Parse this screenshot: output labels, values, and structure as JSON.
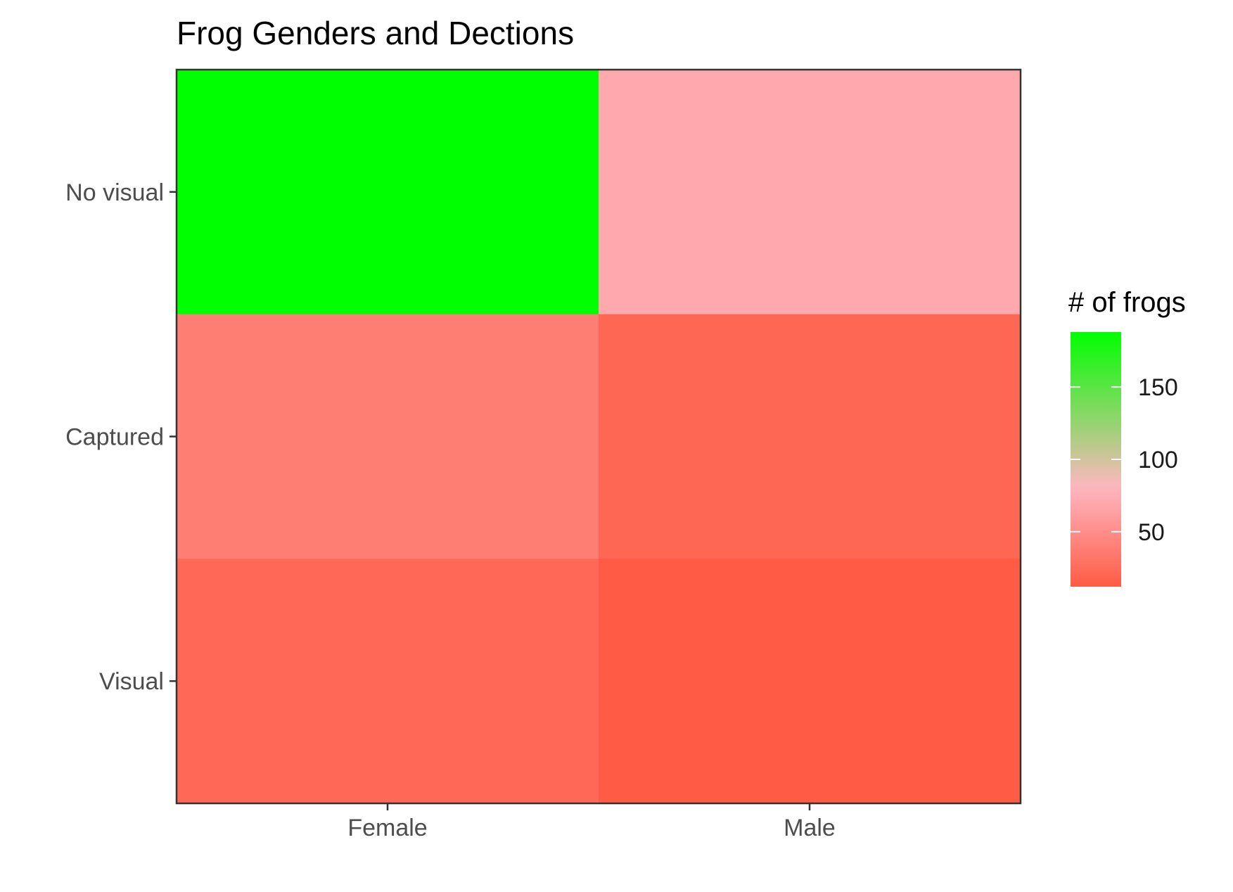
{
  "chart_data": {
    "type": "heatmap",
    "title": "Frog Genders and Dections",
    "x_categories": [
      "Female",
      "Male"
    ],
    "y_categories": [
      "No visual",
      "Captured",
      "Visual"
    ],
    "cells": [
      {
        "x": "Female",
        "y": "No visual",
        "value": 188
      },
      {
        "x": "Male",
        "y": "No visual",
        "value": 70
      },
      {
        "x": "Female",
        "y": "Captured",
        "value": 38
      },
      {
        "x": "Male",
        "y": "Captured",
        "value": 21
      },
      {
        "x": "Female",
        "y": "Visual",
        "value": 22
      },
      {
        "x": "Male",
        "y": "Visual",
        "value": 12
      }
    ],
    "legend": {
      "title": "# of frogs",
      "ticks": [
        50,
        100,
        150
      ],
      "range": [
        12,
        188
      ],
      "placement": "right"
    },
    "gradient": {
      "low": "#ff5b45",
      "mid": "#ffb6c1",
      "high": "#00ff00",
      "midpoint": 80
    },
    "grid": false
  }
}
